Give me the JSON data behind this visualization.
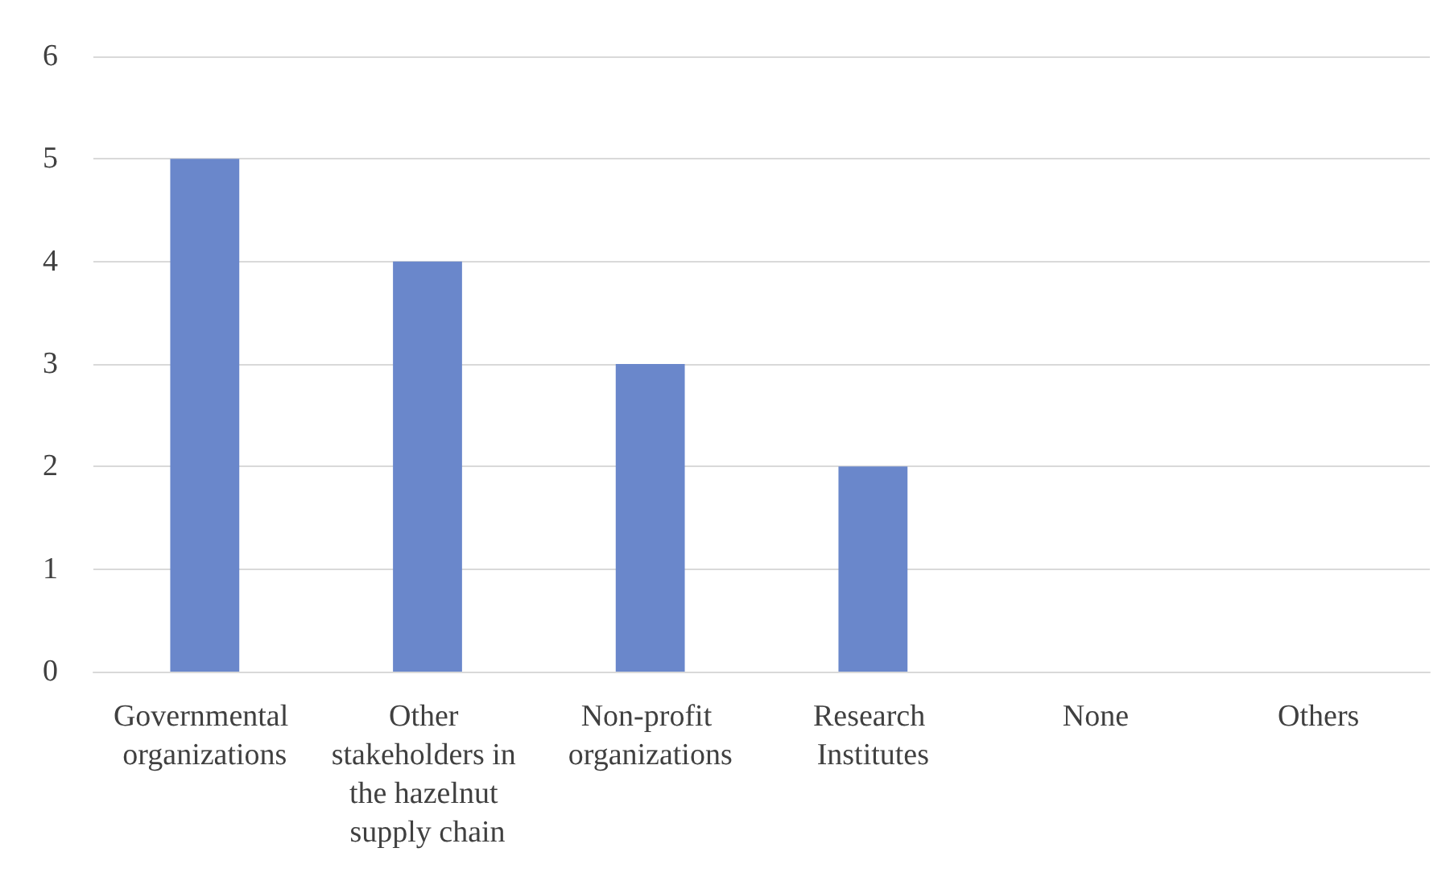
{
  "chart_data": {
    "type": "bar",
    "categories": [
      "Governmental organizations",
      "Other stakeholders in the hazelnut supply chain",
      "Non-profit organizations",
      "Research Institutes",
      "None",
      "Others"
    ],
    "values": [
      5,
      4,
      3,
      2,
      0,
      0
    ],
    "color": "#6a87cb",
    "ylim": [
      0,
      6
    ],
    "yticks": [
      0,
      1,
      2,
      3,
      4,
      5,
      6
    ],
    "grid": "y"
  }
}
